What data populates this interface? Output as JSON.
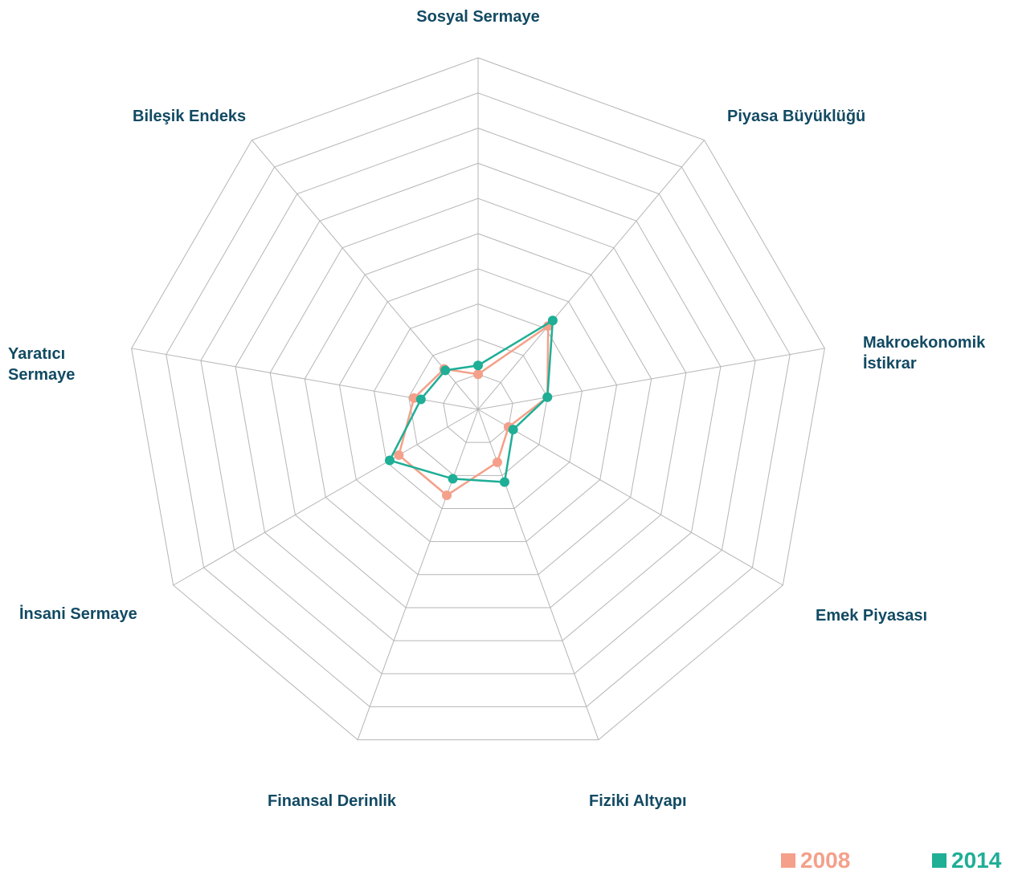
{
  "chart_data": {
    "type": "radar",
    "categories": [
      "Sosyal Sermaye",
      "Piyasa Büyüklüğü",
      "Makroekonomik İstikrar",
      "Emek Piyasası",
      "Fiziki Altyapı",
      "Finansal Derinlik",
      "İnsani Sermaye",
      "Yaratıcı Sermaye",
      "Bileşik Endeks"
    ],
    "series": [
      {
        "name": "2008",
        "color": "#f4a08a",
        "values": [
          1.0,
          3.1,
          2.0,
          1.0,
          1.6,
          2.6,
          2.6,
          1.85,
          1.5
        ]
      },
      {
        "name": "2014",
        "color": "#1fae96",
        "values": [
          1.25,
          3.3,
          2.0,
          1.15,
          2.2,
          2.1,
          2.9,
          1.65,
          1.45
        ]
      }
    ],
    "ylim": [
      0,
      10
    ],
    "yticks": [
      1,
      2,
      3,
      4,
      5,
      6,
      7,
      8,
      9,
      10
    ],
    "grid": true,
    "legend": "bottom-right"
  }
}
